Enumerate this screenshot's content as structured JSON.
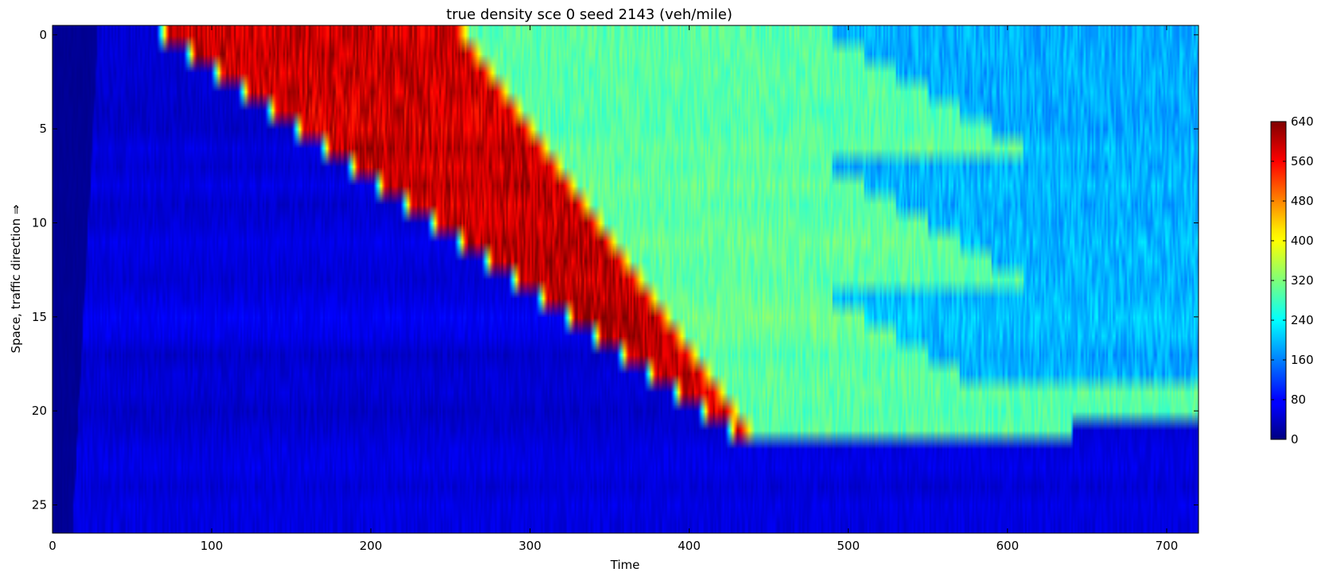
{
  "chart_data": {
    "type": "heatmap",
    "title": "true density sce 0 seed 2143 (veh/mile)",
    "xlabel": "Time",
    "ylabel": "Space, traffic direction ⇒",
    "xlim": [
      0,
      720
    ],
    "ylim": [
      26.5,
      -0.5
    ],
    "x_ticks": [
      0,
      100,
      200,
      300,
      400,
      500,
      600,
      700
    ],
    "y_ticks": [
      0,
      5,
      10,
      15,
      20,
      25
    ],
    "rows": 27,
    "colormap": "jet",
    "colorbar": {
      "min": 0,
      "max": 640,
      "ticks": [
        0,
        80,
        160,
        240,
        320,
        400,
        480,
        560,
        640
      ]
    },
    "levels": {
      "free_flow_density": 60,
      "congestion_density": 600,
      "discharge_density": 280,
      "recovered_density": 170
    },
    "congestion_front": {
      "row_0_start_time": 65,
      "row_0_end_time": 252,
      "front_time_per_row": 17,
      "end_time_per_row": 8.5,
      "last_congested_row": 21
    }
  }
}
